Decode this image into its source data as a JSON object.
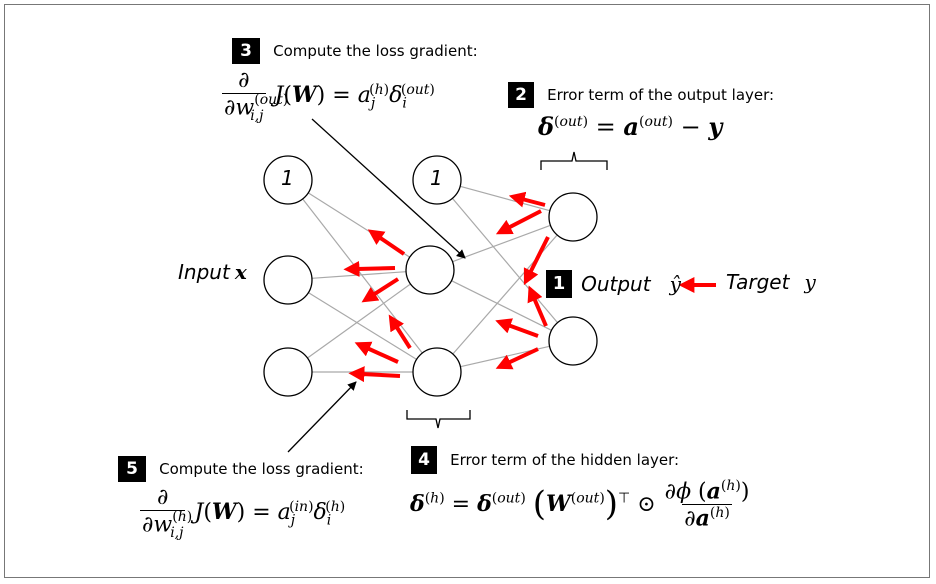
{
  "steps": {
    "s1": {
      "num": "1"
    },
    "s2": {
      "num": "2",
      "caption": "Error term of the output layer:"
    },
    "s3": {
      "num": "3",
      "caption": "Compute the loss gradient:"
    },
    "s4": {
      "num": "4",
      "caption": "Error term of the hidden layer:"
    },
    "s5": {
      "num": "5",
      "caption": "Compute the loss gradient:"
    }
  },
  "labels": {
    "input": "Input",
    "input_var": "x",
    "output": "Output",
    "output_var": "ŷ",
    "target": "Target",
    "target_var": "y",
    "bias": "1"
  },
  "colors": {
    "arrow": "#ff0000",
    "edge": "#a9a9a9",
    "node": "#000000"
  },
  "icons": [
    "red-arrow-icon",
    "black-arrow-icon",
    "brace-icon"
  ]
}
